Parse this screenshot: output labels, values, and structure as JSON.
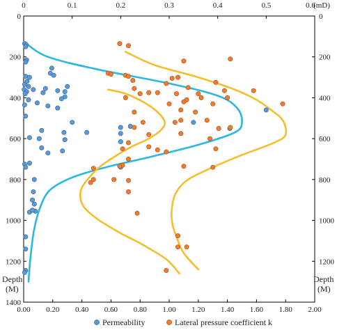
{
  "chart_data": {
    "type": "scatter",
    "title": "",
    "axes": {
      "x_top": {
        "label": "(mD)",
        "range": [
          0,
          0.6
        ],
        "ticks": [
          "0",
          "0.1",
          "0.2",
          "0.3",
          "0.4",
          "0.5",
          "0.6"
        ],
        "applies_to": "Permeability"
      },
      "x_bottom": {
        "label": "",
        "range": [
          0,
          2.0
        ],
        "ticks": [
          "0.00",
          "0.20",
          "0.40",
          "0.60",
          "0.80",
          "1.00",
          "1.20",
          "1.40",
          "1.60",
          "1.80",
          "2.00"
        ],
        "applies_to": "Lateral pressure coefficient k"
      },
      "y_left": {
        "label_line1": "Depth",
        "label_line2": "(M)",
        "range": [
          0,
          1400
        ],
        "reversed": true,
        "ticks": [
          "0",
          "200",
          "400",
          "600",
          "800",
          "1000",
          "1200",
          "1400"
        ]
      },
      "y_right": {
        "label_line1": "Depth",
        "label_line2": "(M)",
        "range": [
          0,
          1400
        ],
        "reversed": true,
        "ticks": [
          "0",
          "200",
          "400",
          "600",
          "800",
          "1000",
          "1200"
        ]
      }
    },
    "grid": false,
    "legend": {
      "position": "bottom",
      "entries": [
        "Permeability",
        "Lateral pressure coefficient k"
      ]
    },
    "series": [
      {
        "name": "Permeability",
        "kind": "scatter",
        "x_axis": "top",
        "color": "#5b9bd5",
        "edge": "#3e6ea8",
        "points": [
          [
            0.002,
            135
          ],
          [
            0.005,
            140
          ],
          [
            0.004,
            150
          ],
          [
            0.006,
            215
          ],
          [
            0.004,
            225
          ],
          [
            0.058,
            255
          ],
          [
            0.055,
            280
          ],
          [
            0.062,
            290
          ],
          [
            0.004,
            295
          ],
          [
            0.012,
            300
          ],
          [
            0.002,
            335
          ],
          [
            0.007,
            320
          ],
          [
            0.01,
            345
          ],
          [
            0.001,
            360
          ],
          [
            0.006,
            370
          ],
          [
            0.003,
            380
          ],
          [
            0.045,
            355
          ],
          [
            0.02,
            360
          ],
          [
            0.04,
            375
          ],
          [
            0.07,
            365
          ],
          [
            0.085,
            370
          ],
          [
            0.09,
            345
          ],
          [
            0.085,
            395
          ],
          [
            0.078,
            405
          ],
          [
            0.01,
            410
          ],
          [
            0.028,
            425
          ],
          [
            0.002,
            435
          ],
          [
            0.05,
            440
          ],
          [
            0.07,
            450
          ],
          [
            0.004,
            490
          ],
          [
            0.1,
            520
          ],
          [
            0.037,
            560
          ],
          [
            0.083,
            570
          ],
          [
            0.012,
            595
          ],
          [
            0.032,
            600
          ],
          [
            0.085,
            605
          ],
          [
            0.13,
            570
          ],
          [
            0.037,
            645
          ],
          [
            0.08,
            660
          ],
          [
            0.05,
            670
          ],
          [
            0.002,
            725
          ],
          [
            0.004,
            740
          ],
          [
            0.012,
            720
          ],
          [
            0.022,
            800
          ],
          [
            0.02,
            860
          ],
          [
            0.018,
            900
          ],
          [
            0.022,
            920
          ],
          [
            0.012,
            960
          ],
          [
            0.004,
            1080
          ],
          [
            0.004,
            1140
          ],
          [
            0.004,
            1245
          ],
          [
            0.002,
            1255
          ],
          [
            0.024,
            955
          ],
          [
            0.018,
            950
          ],
          [
            0.2,
            740
          ],
          [
            0.2,
            545
          ],
          [
            0.2,
            575
          ],
          [
            0.2,
            615
          ],
          [
            0.425,
            550
          ],
          [
            0.5,
            460
          ],
          [
            0.22,
            540
          ],
          [
            0.35,
            520
          ]
        ]
      },
      {
        "name": "Lateral pressure coefficient k",
        "kind": "scatter",
        "x_axis": "bottom",
        "color": "#ed7d31",
        "edge": "#c0571b",
        "points": [
          [
            0.66,
            135
          ],
          [
            0.72,
            145
          ],
          [
            1.42,
            210
          ],
          [
            1.1,
            220
          ],
          [
            0.58,
            280
          ],
          [
            0.6,
            285
          ],
          [
            0.7,
            290
          ],
          [
            0.72,
            295
          ],
          [
            1.02,
            305
          ],
          [
            1.06,
            300
          ],
          [
            1.32,
            325
          ],
          [
            0.75,
            315
          ],
          [
            0.98,
            330
          ],
          [
            0.76,
            355
          ],
          [
            0.86,
            375
          ],
          [
            0.92,
            375
          ],
          [
            0.8,
            380
          ],
          [
            1.05,
            380
          ],
          [
            1.13,
            350
          ],
          [
            1.2,
            380
          ],
          [
            1.38,
            365
          ],
          [
            1.58,
            365
          ],
          [
            1.22,
            400
          ],
          [
            0.7,
            400
          ],
          [
            1.12,
            410
          ],
          [
            1.4,
            400
          ],
          [
            1.0,
            430
          ],
          [
            1.1,
            420
          ],
          [
            1.3,
            430
          ],
          [
            1.78,
            430
          ],
          [
            1.08,
            460
          ],
          [
            1.18,
            470
          ],
          [
            0.76,
            470
          ],
          [
            0.82,
            520
          ],
          [
            1.04,
            520
          ],
          [
            0.76,
            545
          ],
          [
            0.86,
            580
          ],
          [
            1.08,
            510
          ],
          [
            1.26,
            510
          ],
          [
            1.34,
            550
          ],
          [
            1.08,
            575
          ],
          [
            1.42,
            545
          ],
          [
            1.28,
            600
          ],
          [
            0.72,
            620
          ],
          [
            0.86,
            640
          ],
          [
            0.68,
            650
          ],
          [
            0.92,
            655
          ],
          [
            0.98,
            665
          ],
          [
            1.32,
            650
          ],
          [
            0.72,
            700
          ],
          [
            0.68,
            730
          ],
          [
            0.66,
            735
          ],
          [
            0.48,
            745
          ],
          [
            1.1,
            735
          ],
          [
            1.3,
            740
          ],
          [
            0.62,
            800
          ],
          [
            0.72,
            805
          ],
          [
            0.48,
            800
          ],
          [
            0.46,
            815
          ],
          [
            0.72,
            860
          ],
          [
            0.78,
            965
          ],
          [
            1.06,
            1075
          ],
          [
            1.06,
            1130
          ],
          [
            1.12,
            1130
          ],
          [
            0.98,
            1245
          ]
        ]
      },
      {
        "name": "",
        "kind": "line",
        "x_axis": "top",
        "color": "#2ab7e6",
        "points": [
          [
            0.005,
            135
          ],
          [
            0.05,
            200
          ],
          [
            0.15,
            260
          ],
          [
            0.3,
            330
          ],
          [
            0.4,
            390
          ],
          [
            0.44,
            450
          ],
          [
            0.45,
            520
          ],
          [
            0.435,
            570
          ],
          [
            0.36,
            630
          ],
          [
            0.26,
            690
          ],
          [
            0.17,
            740
          ],
          [
            0.1,
            790
          ],
          [
            0.055,
            850
          ],
          [
            0.035,
            930
          ],
          [
            0.022,
            1040
          ],
          [
            0.014,
            1180
          ],
          [
            0.01,
            1300
          ]
        ]
      },
      {
        "name": "",
        "kind": "line",
        "x_axis": "bottom",
        "color": "#f6be2b",
        "points": [
          [
            0.7,
            175
          ],
          [
            0.9,
            240
          ],
          [
            1.2,
            300
          ],
          [
            1.45,
            360
          ],
          [
            1.6,
            410
          ],
          [
            1.7,
            460
          ],
          [
            1.78,
            510
          ],
          [
            1.8,
            580
          ],
          [
            1.72,
            620
          ],
          [
            1.5,
            680
          ],
          [
            1.3,
            740
          ],
          [
            1.13,
            800
          ],
          [
            1.05,
            860
          ],
          [
            1.02,
            930
          ],
          [
            1.02,
            1010
          ],
          [
            1.05,
            1080
          ],
          [
            1.1,
            1160
          ],
          [
            1.2,
            1240
          ]
        ]
      },
      {
        "name": "",
        "kind": "line",
        "x_axis": "bottom",
        "color": "#f6be2b",
        "points": [
          [
            0.58,
            360
          ],
          [
            0.7,
            380
          ],
          [
            0.82,
            420
          ],
          [
            0.92,
            470
          ],
          [
            0.97,
            520
          ],
          [
            0.94,
            560
          ],
          [
            0.86,
            600
          ],
          [
            0.74,
            640
          ],
          [
            0.62,
            690
          ],
          [
            0.52,
            740
          ],
          [
            0.45,
            790
          ],
          [
            0.4,
            840
          ],
          [
            0.39,
            890
          ],
          [
            0.42,
            940
          ],
          [
            0.52,
            1000
          ],
          [
            0.66,
            1060
          ],
          [
            0.82,
            1120
          ],
          [
            0.98,
            1190
          ],
          [
            1.07,
            1260
          ]
        ]
      }
    ]
  }
}
